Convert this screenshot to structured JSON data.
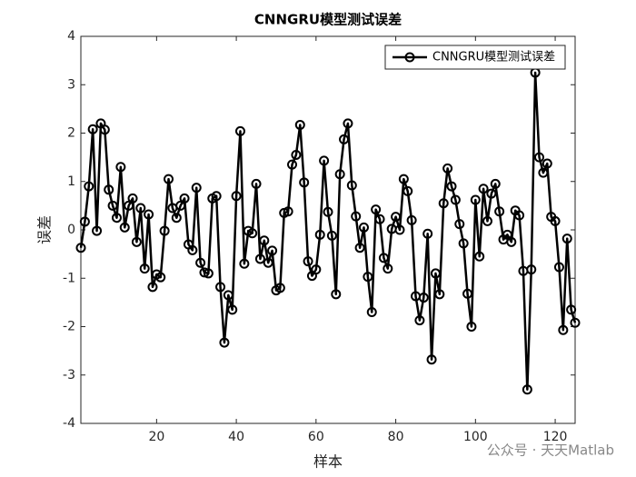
{
  "chart_data": {
    "type": "line",
    "title": "CNNGRU模型测试误差",
    "xlabel": "样本",
    "ylabel": "误差",
    "x": [
      1,
      2,
      3,
      4,
      5,
      6,
      7,
      8,
      9,
      10,
      11,
      12,
      13,
      14,
      15,
      16,
      17,
      18,
      19,
      20,
      21,
      22,
      23,
      24,
      25,
      26,
      27,
      28,
      29,
      30,
      31,
      32,
      33,
      34,
      35,
      36,
      37,
      38,
      39,
      40,
      41,
      42,
      43,
      44,
      45,
      46,
      47,
      48,
      49,
      50,
      51,
      52,
      53,
      54,
      55,
      56,
      57,
      58,
      59,
      60,
      61,
      62,
      63,
      64,
      65,
      66,
      67,
      68,
      69,
      70,
      71,
      72,
      73,
      74,
      75,
      76,
      77,
      78,
      79,
      80,
      81,
      82,
      83,
      84,
      85,
      86,
      87,
      88,
      89,
      90,
      91,
      92,
      93,
      94,
      95,
      96,
      97,
      98,
      99,
      100,
      101,
      102,
      103,
      104,
      105,
      106,
      107,
      108,
      109,
      110,
      111,
      112,
      113,
      114,
      115,
      116,
      117,
      118,
      119,
      120,
      121,
      122,
      123,
      124,
      125
    ],
    "series": [
      {
        "name": "CNNGRU模型测试误差",
        "color": "#000000",
        "values": [
          -0.37,
          0.17,
          0.9,
          2.08,
          -0.02,
          2.2,
          2.07,
          0.83,
          0.5,
          0.25,
          1.3,
          0.05,
          0.5,
          0.65,
          -0.25,
          0.45,
          -0.8,
          0.32,
          -1.18,
          -0.92,
          -0.98,
          -0.02,
          1.05,
          0.45,
          0.25,
          0.5,
          0.65,
          -0.3,
          -0.42,
          0.87,
          -0.68,
          -0.88,
          -0.9,
          0.65,
          0.7,
          -1.18,
          -2.33,
          -1.35,
          -1.65,
          0.7,
          2.04,
          -0.7,
          -0.02,
          -0.07,
          0.95,
          -0.6,
          -0.22,
          -0.68,
          -0.43,
          -1.25,
          -1.2,
          0.35,
          0.38,
          1.35,
          1.55,
          2.17,
          0.98,
          -0.65,
          -0.95,
          -0.82,
          -0.1,
          1.43,
          0.37,
          -0.12,
          -1.33,
          1.15,
          1.87,
          2.2,
          0.92,
          0.28,
          -0.37,
          0.05,
          -0.97,
          -1.7,
          0.42,
          0.22,
          -0.58,
          -0.8,
          0.02,
          0.27,
          0.0,
          1.05,
          0.8,
          0.2,
          -1.37,
          -1.87,
          -1.4,
          -0.08,
          -2.68,
          -0.9,
          -1.33,
          0.55,
          1.27,
          0.9,
          0.62,
          0.12,
          -0.28,
          -1.32,
          -2.0,
          0.62,
          -0.55,
          0.85,
          0.18,
          0.75,
          0.95,
          0.38,
          -0.2,
          -0.1,
          -0.25,
          0.4,
          0.3,
          -0.85,
          -3.3,
          -0.82,
          3.25,
          1.5,
          1.18,
          1.37,
          0.27,
          0.18,
          -0.77,
          -2.07,
          -0.18,
          -1.65,
          -1.92
        ]
      }
    ],
    "xlim": [
      1,
      125
    ],
    "ylim": [
      -4,
      4
    ],
    "xticks": [
      20,
      40,
      60,
      80,
      100,
      120
    ],
    "yticks": [
      -4,
      -3,
      -2,
      -1,
      0,
      1,
      2,
      3,
      4
    ],
    "legend": "northeast",
    "watermark": "公众号 · 天天Matlab"
  }
}
